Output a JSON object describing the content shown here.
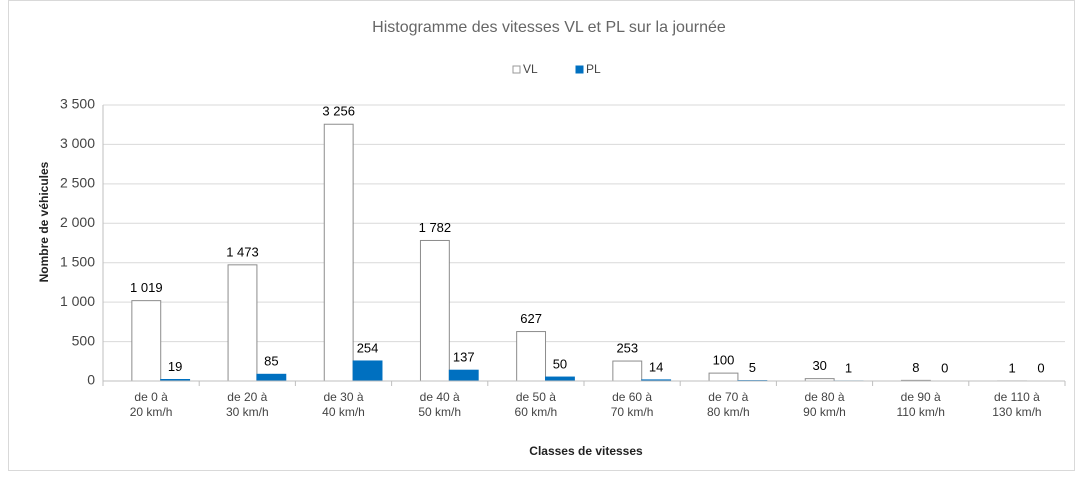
{
  "chart_data": {
    "type": "bar",
    "title": "Histogramme des vitesses VL et PL sur la journée",
    "x_label": "Classes de vitesses",
    "y_label": "Nombre de véhicules",
    "categories": [
      "de 0 à\n20 km/h",
      "de 20 à\n30 km/h",
      "de 30 à\n40 km/h",
      "de 40 à\n50 km/h",
      "de 50 à\n60 km/h",
      "de 60 à\n70 km/h",
      "de 70 à\n80 km/h",
      "de 80 à\n90 km/h",
      "de 90 à\n110 km/h",
      "de 110 à\n130 km/h"
    ],
    "series": [
      {
        "name": "VL",
        "color": "#ffffff",
        "values": [
          1019,
          1473,
          3256,
          1782,
          627,
          253,
          100,
          30,
          8,
          1
        ],
        "value_labels": [
          "1 019",
          "1 473",
          "3 256",
          "1 782",
          "627",
          "253",
          "100",
          "30",
          "8",
          "1"
        ]
      },
      {
        "name": "PL",
        "color": "#0070c0",
        "values": [
          19,
          85,
          254,
          137,
          50,
          14,
          5,
          1,
          0,
          0
        ]
      }
    ],
    "ylim": [
      0,
      3500
    ],
    "yticks": [
      0,
      500,
      {
        "value": 1000,
        "label": "1 000"
      },
      {
        "value": 1500,
        "label": "1 500"
      },
      {
        "value": 2000,
        "label": "2 000"
      },
      {
        "value": 2500,
        "label": "2 500"
      },
      {
        "value": 3000,
        "label": "3 000"
      },
      {
        "value": 3500,
        "label": "3 500"
      }
    ],
    "grid": true,
    "legend": "top"
  }
}
